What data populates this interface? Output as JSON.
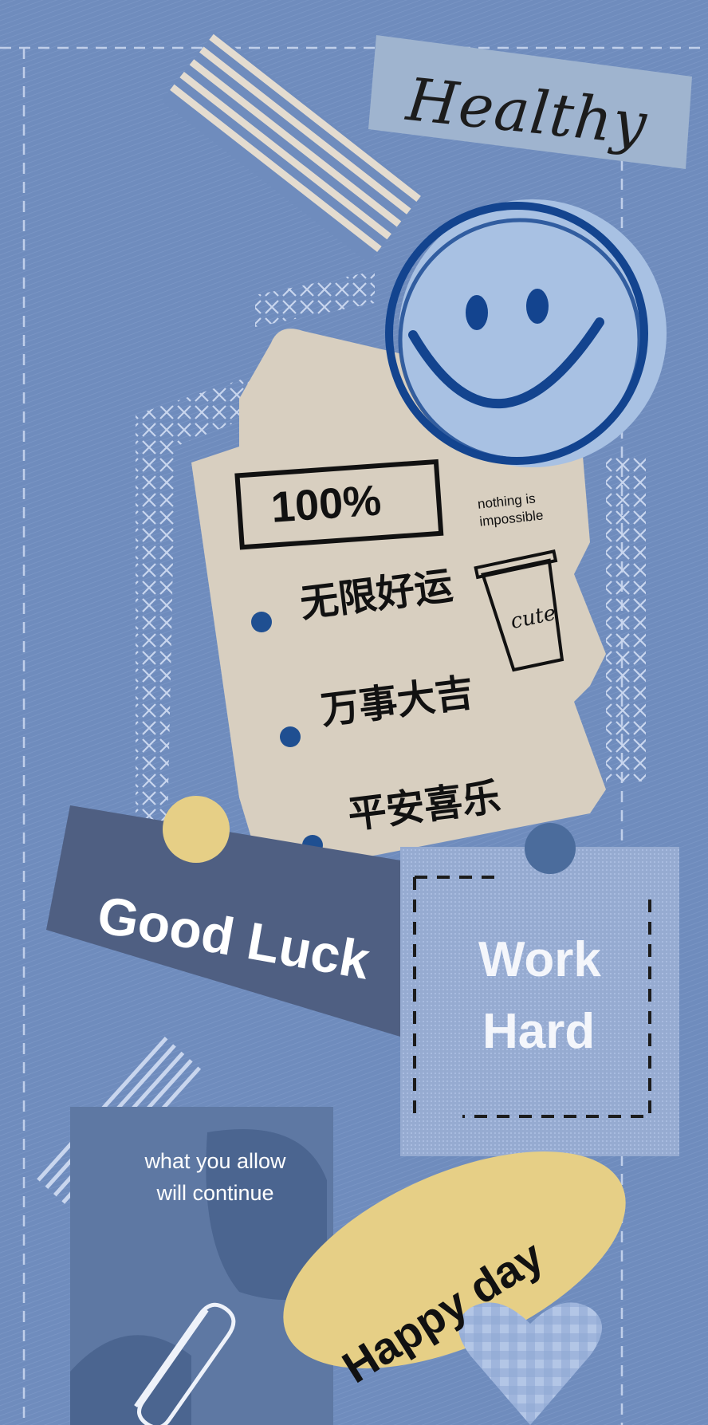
{
  "labels": {
    "healthy": "Healthy",
    "percent": "100%",
    "nothing": "nothing is\nimpossible",
    "cup": "cute",
    "wishes": [
      "无限好运",
      "万事大吉",
      "平安喜乐"
    ],
    "good_luck": "Good Luck",
    "work": "Work",
    "hard": "Hard",
    "allow": "what you allow\nwill continue",
    "happy": "Happy day"
  },
  "colors": {
    "background": "#6f8cbd",
    "stitch": "#c9d6ee",
    "tape_stripe": "#e4dcd0",
    "healthy_label": "#9fb4cf",
    "smiley_fill": "#a8c1e3",
    "smiley_ink": "#13448f",
    "paper": "#d8cfc0",
    "navy_label": "#4f5f82",
    "mustard": "#e6cf86",
    "dot_blue": "#1f4f91",
    "work_card": "#96abd1",
    "collage": "#5e78a3",
    "heart": "#b3c6e6"
  },
  "icons": [
    "smiley-face-icon",
    "coffee-cup-icon",
    "paperclip-icon",
    "heart-icon",
    "pushpin-icon"
  ]
}
